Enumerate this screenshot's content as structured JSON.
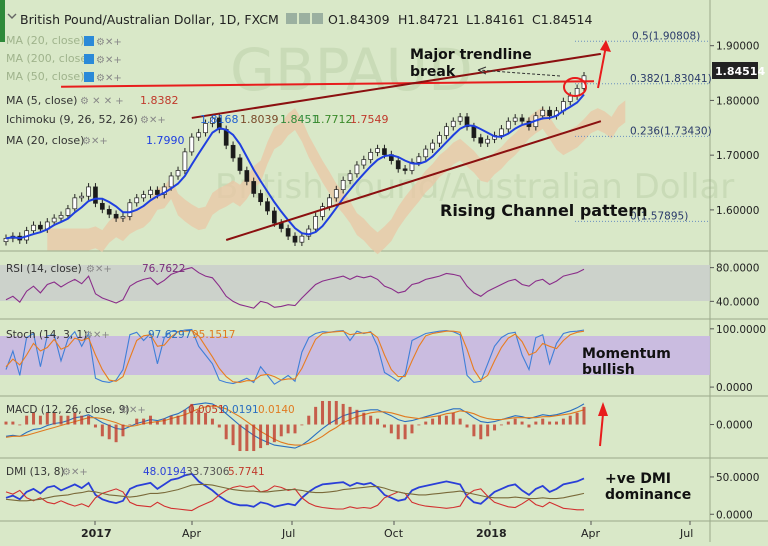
{
  "chart_data": {
    "type": "candlestick",
    "title": "British Pound/Australian Dollar, 1D, FXCM",
    "ohlc": {
      "o": "O1.84309",
      "h": "H1.84721",
      "l": "L1.84161",
      "c": "C1.84514"
    },
    "last_price": "1.84514",
    "watermark": "GBPAUD",
    "watermark_sub": "British Pound/Australian Dollar",
    "x_ticks": [
      "2017",
      "Apr",
      "Jul",
      "Oct",
      "2018",
      "Apr",
      "Jul"
    ],
    "price_axis": {
      "ticks": [
        "1.90000",
        "1.80000",
        "1.70000",
        "1.60000"
      ],
      "ylim": [
        1.545,
        1.925
      ]
    },
    "fib_levels": [
      {
        "label": "0.5(1.90808)",
        "value": 1.90808
      },
      {
        "label": "0.382(1.83041)",
        "value": 1.83041
      },
      {
        "label": "0.236(1.73430)",
        "value": 1.7343
      },
      {
        "label": "0(1.57895)",
        "value": 1.57895
      }
    ],
    "close": [
      1.548,
      1.552,
      1.545,
      1.562,
      1.572,
      1.565,
      1.578,
      1.585,
      1.59,
      1.602,
      1.622,
      1.625,
      1.642,
      1.612,
      1.601,
      1.592,
      1.585,
      1.588,
      1.613,
      1.622,
      1.628,
      1.636,
      1.628,
      1.642,
      1.662,
      1.672,
      1.706,
      1.733,
      1.741,
      1.758,
      1.768,
      1.747,
      1.718,
      1.695,
      1.672,
      1.652,
      1.63,
      1.615,
      1.598,
      1.576,
      1.566,
      1.552,
      1.541,
      1.552,
      1.565,
      1.588,
      1.606,
      1.622,
      1.637,
      1.654,
      1.666,
      1.682,
      1.692,
      1.705,
      1.712,
      1.701,
      1.69,
      1.675,
      1.672,
      1.687,
      1.697,
      1.711,
      1.722,
      1.736,
      1.752,
      1.762,
      1.77,
      1.752,
      1.732,
      1.722,
      1.729,
      1.736,
      1.748,
      1.762,
      1.768,
      1.762,
      1.752,
      1.772,
      1.782,
      1.772,
      1.781,
      1.798,
      1.808,
      1.822,
      1.845
    ],
    "trendlines": [
      {
        "name": "Major trendline",
        "from": [
          8,
          1.825
        ],
        "to": [
          84,
          1.835
        ]
      },
      {
        "name": "Channel top",
        "from": [
          27,
          1.768
        ],
        "to": [
          85,
          1.885
        ]
      },
      {
        "name": "Channel bottom",
        "from": [
          32,
          1.545
        ],
        "to": [
          85,
          1.762
        ]
      }
    ],
    "annotations": [
      {
        "text": "Major trendline"
      },
      {
        "text": "break"
      },
      {
        "text": "Rising Channel pattern"
      }
    ],
    "overlay_legends": [
      {
        "label": "MA (20, close)",
        "value": ""
      },
      {
        "label": "MA (200, close)",
        "value": ""
      },
      {
        "label": "MA (50, close)",
        "value": ""
      },
      {
        "label": "MA (5, close)",
        "value": "1.8382"
      },
      {
        "label": "Ichimoku (9, 26, 52, 26)",
        "values": [
          "1.8168",
          "1.8039",
          "1.8451",
          "1.7712",
          "1.7549"
        ]
      },
      {
        "label": "MA (20, close)",
        "value": "1.7990"
      }
    ],
    "indicators": [
      {
        "name": "RSI",
        "label": "RSI (14, close)",
        "values": [
          "76.7622"
        ],
        "ticks": [
          "80.0000",
          "40.0000"
        ],
        "ylim": [
          25,
          95
        ],
        "band": [
          30,
          70
        ],
        "series": [
          {
            "name": "RSI",
            "values": [
              42,
              46,
              39,
              52,
              58,
              50,
              60,
              63,
              57,
              62,
              66,
              61,
              70,
              49,
              44,
              41,
              38,
              42,
              58,
              63,
              66,
              68,
              60,
              65,
              72,
              75,
              78,
              80,
              74,
              70,
              68,
              58,
              46,
              40,
              36,
              34,
              32,
              40,
              38,
              33,
              34,
              36,
              35,
              44,
              52,
              60,
              64,
              66,
              68,
              70,
              66,
              70,
              68,
              70,
              66,
              58,
              55,
              50,
              52,
              60,
              62,
              66,
              68,
              70,
              73,
              72,
              70,
              58,
              50,
              46,
              52,
              56,
              60,
              64,
              66,
              60,
              58,
              64,
              66,
              60,
              64,
              70,
              72,
              74,
              78
            ]
          }
        ]
      },
      {
        "name": "Stoch",
        "label": "Stoch (14, 3, 1)",
        "values": [
          "97.6297",
          "95.1517"
        ],
        "ticks": [
          "100.0000",
          "0.0000"
        ],
        "ylim": [
          -5,
          110
        ],
        "band": [
          20,
          80
        ],
        "series": [
          {
            "name": "%K",
            "values": [
              30,
              62,
              20,
              85,
              92,
              35,
              88,
              90,
              45,
              82,
              95,
              70,
              92,
              15,
              10,
              8,
              12,
              30,
              90,
              94,
              80,
              92,
              40,
              85,
              96,
              95,
              98,
              99,
              70,
              55,
              40,
              12,
              8,
              6,
              10,
              15,
              8,
              35,
              20,
              5,
              12,
              20,
              10,
              60,
              85,
              92,
              95,
              94,
              96,
              97,
              80,
              96,
              92,
              95,
              70,
              25,
              18,
              10,
              22,
              80,
              86,
              92,
              94,
              96,
              97,
              95,
              90,
              20,
              8,
              10,
              40,
              70,
              85,
              92,
              94,
              55,
              30,
              85,
              90,
              40,
              75,
              92,
              95,
              96,
              98
            ]
          },
          {
            "name": "%D",
            "values": [
              35,
              48,
              38,
              55,
              75,
              62,
              68,
              82,
              65,
              70,
              84,
              80,
              84,
              55,
              30,
              12,
              10,
              18,
              50,
              80,
              88,
              90,
              70,
              72,
              86,
              95,
              96,
              97,
              88,
              70,
              52,
              32,
              18,
              9,
              8,
              11,
              11,
              20,
              22,
              18,
              12,
              14,
              14,
              32,
              58,
              82,
              92,
              94,
              95,
              96,
              90,
              92,
              93,
              94,
              85,
              55,
              30,
              18,
              18,
              45,
              70,
              88,
              92,
              94,
              96,
              96,
              94,
              65,
              30,
              12,
              20,
              45,
              68,
              84,
              91,
              78,
              55,
              60,
              75,
              70,
              66,
              80,
              90,
              94,
              96
            ]
          }
        ]
      },
      {
        "name": "MACD",
        "label": "MACD (12, 26, close, 9)",
        "values": [
          "0.0051",
          "0.0191",
          "0.0140"
        ],
        "ticks": [
          "0.0000"
        ],
        "ylim": [
          -0.028,
          0.025
        ],
        "series": [
          {
            "name": "MACD",
            "values": [
              -0.012,
              -0.011,
              -0.012,
              -0.008,
              -0.005,
              -0.004,
              -0.001,
              0.001,
              0.002,
              0.004,
              0.007,
              0.008,
              0.01,
              0.006,
              0.002,
              -0.001,
              -0.004,
              -0.005,
              -0.002,
              0.001,
              0.003,
              0.005,
              0.004,
              0.006,
              0.009,
              0.011,
              0.015,
              0.02,
              0.021,
              0.022,
              0.021,
              0.017,
              0.011,
              0.005,
              -0.001,
              -0.006,
              -0.011,
              -0.015,
              -0.018,
              -0.021,
              -0.022,
              -0.023,
              -0.024,
              -0.021,
              -0.016,
              -0.01,
              -0.004,
              0.001,
              0.005,
              0.009,
              0.011,
              0.013,
              0.014,
              0.015,
              0.015,
              0.012,
              0.009,
              0.005,
              0.003,
              0.004,
              0.006,
              0.008,
              0.01,
              0.012,
              0.014,
              0.016,
              0.016,
              0.012,
              0.007,
              0.003,
              0.002,
              0.003,
              0.005,
              0.007,
              0.009,
              0.008,
              0.006,
              0.008,
              0.01,
              0.009,
              0.01,
              0.012,
              0.014,
              0.017,
              0.021
            ]
          },
          {
            "name": "Signal",
            "values": [
              -0.013,
              -0.012,
              -0.012,
              -0.011,
              -0.009,
              -0.007,
              -0.005,
              -0.003,
              -0.001,
              0.001,
              0.003,
              0.005,
              0.007,
              0.007,
              0.006,
              0.004,
              0.002,
              -0.001,
              -0.002,
              -0.001,
              0.001,
              0.002,
              0.003,
              0.004,
              0.006,
              0.008,
              0.01,
              0.013,
              0.016,
              0.018,
              0.019,
              0.018,
              0.016,
              0.012,
              0.008,
              0.003,
              -0.002,
              -0.007,
              -0.011,
              -0.015,
              -0.018,
              -0.02,
              -0.021,
              -0.021,
              -0.019,
              -0.016,
              -0.012,
              -0.007,
              -0.003,
              0.002,
              0.005,
              0.008,
              0.01,
              0.012,
              0.013,
              0.013,
              0.012,
              0.01,
              0.008,
              0.007,
              0.006,
              0.007,
              0.008,
              0.009,
              0.011,
              0.012,
              0.014,
              0.013,
              0.011,
              0.008,
              0.006,
              0.005,
              0.005,
              0.006,
              0.007,
              0.007,
              0.007,
              0.007,
              0.008,
              0.008,
              0.009,
              0.01,
              0.011,
              0.013,
              0.015
            ]
          }
        ]
      },
      {
        "name": "DMI",
        "label": "DMI (13, 8)",
        "values": [
          "48.0194",
          "33.7306",
          "5.7741"
        ],
        "ticks": [
          "50.0000",
          "0.0000"
        ],
        "ylim": [
          -5,
          70
        ],
        "series": [
          {
            "name": "+DI",
            "values": [
              22,
              25,
              20,
              30,
              34,
              28,
              36,
              38,
              32,
              36,
              40,
              35,
              42,
              26,
              20,
              17,
              15,
              18,
              34,
              38,
              40,
              42,
              34,
              40,
              46,
              48,
              52,
              54,
              44,
              38,
              32,
              24,
              18,
              14,
              12,
              12,
              10,
              16,
              14,
              10,
              12,
              14,
              12,
              22,
              30,
              36,
              40,
              41,
              42,
              43,
              38,
              42,
              40,
              42,
              36,
              26,
              22,
              18,
              20,
              32,
              36,
              38,
              40,
              42,
              44,
              42,
              40,
              24,
              16,
              14,
              22,
              30,
              34,
              38,
              40,
              32,
              26,
              34,
              38,
              30,
              34,
              40,
              42,
              44,
              48
            ]
          },
          {
            "name": "-DI",
            "values": [
              30,
              27,
              32,
              22,
              18,
              22,
              16,
              14,
              18,
              14,
              11,
              14,
              10,
              22,
              28,
              31,
              34,
              30,
              16,
              12,
              11,
              10,
              16,
              11,
              8,
              7,
              6,
              5,
              10,
              14,
              18,
              26,
              32,
              36,
              38,
              36,
              38,
              30,
              32,
              38,
              36,
              32,
              34,
              22,
              15,
              11,
              9,
              8,
              7,
              7,
              10,
              8,
              9,
              8,
              12,
              22,
              26,
              30,
              28,
              16,
              13,
              11,
              10,
              9,
              8,
              9,
              11,
              26,
              32,
              34,
              24,
              16,
              13,
              10,
              9,
              14,
              20,
              13,
              10,
              16,
              12,
              8,
              7,
              6,
              6
            ]
          },
          {
            "name": "ADX",
            "values": [
              20,
              19,
              18,
              18,
              19,
              20,
              22,
              24,
              25,
              26,
              28,
              29,
              31,
              30,
              28,
              26,
              25,
              24,
              23,
              24,
              26,
              28,
              28,
              29,
              31,
              33,
              36,
              39,
              40,
              40,
              39,
              37,
              35,
              33,
              32,
              31,
              31,
              30,
              30,
              31,
              32,
              33,
              33,
              32,
              30,
              29,
              29,
              30,
              31,
              33,
              34,
              35,
              36,
              37,
              37,
              35,
              32,
              30,
              28,
              27,
              26,
              26,
              27,
              28,
              29,
              30,
              31,
              29,
              27,
              25,
              23,
              22,
              22,
              22,
              23,
              22,
              21,
              21,
              22,
              21,
              21,
              22,
              24,
              26,
              28
            ]
          }
        ]
      }
    ],
    "annotations_right": [
      {
        "text": "Momentum"
      },
      {
        "text": "bullish"
      },
      {
        "text": "+ve DMI"
      },
      {
        "text": "dominance"
      }
    ]
  },
  "colors": {
    "background": "#d9e8c8",
    "candle_up": "#ffffff",
    "candle_down": "#1a1a1a",
    "ma_blue": "#1f3fe0",
    "trend_red": "#e81c1c",
    "trend_dark": "#8b1010",
    "cloud": "#e9c7a6",
    "cloud_green": "#b7d38f",
    "rsi_line": "#8a2d8a",
    "stoch_k": "#3f7fd8",
    "stoch_d": "#e87d20",
    "stoch_band": "#c8b7e2",
    "band_gray": "#c8cccc",
    "macd": "#2a6fc0",
    "macd_signal": "#e07a20",
    "dmi_plus": "#2a3fd8",
    "dmi_minus": "#d23030",
    "adx": "#7a6a3a"
  }
}
